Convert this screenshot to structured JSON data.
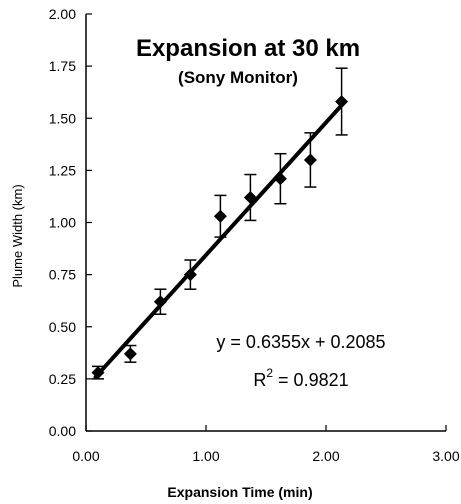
{
  "chart_data": {
    "type": "scatter",
    "title": "Expansion at 30 km",
    "subtitle": "(Sony Monitor)",
    "xlabel": "Expansion Time (min)",
    "ylabel": "Plume Width (km)",
    "xlim": [
      0,
      3
    ],
    "ylim": [
      0,
      2
    ],
    "x_ticks": [
      "0.00",
      "1.00",
      "2.00",
      "3.00"
    ],
    "y_ticks": [
      "0.00",
      "0.25",
      "0.50",
      "0.75",
      "1.00",
      "1.25",
      "1.50",
      "1.75",
      "2.00"
    ],
    "x_tick_values": [
      0,
      1,
      2,
      3
    ],
    "y_tick_values": [
      0,
      0.25,
      0.5,
      0.75,
      1.0,
      1.25,
      1.5,
      1.75,
      2.0
    ],
    "points": [
      {
        "x": 0.1,
        "y": 0.28,
        "err": 0.03
      },
      {
        "x": 0.37,
        "y": 0.37,
        "err": 0.04
      },
      {
        "x": 0.62,
        "y": 0.62,
        "err": 0.06
      },
      {
        "x": 0.87,
        "y": 0.75,
        "err": 0.07
      },
      {
        "x": 1.12,
        "y": 1.03,
        "err": 0.1
      },
      {
        "x": 1.37,
        "y": 1.12,
        "err": 0.11
      },
      {
        "x": 1.62,
        "y": 1.21,
        "err": 0.12
      },
      {
        "x": 1.87,
        "y": 1.3,
        "err": 0.13
      },
      {
        "x": 2.13,
        "y": 1.58,
        "err": 0.16
      }
    ],
    "fit": {
      "slope": 0.6355,
      "intercept": 0.2085,
      "x_range": [
        0.08,
        2.15
      ]
    },
    "equation_text": "y = 0.6355x + 0.2085",
    "r2_prefix": "R",
    "r2_sup": "2",
    "r2_suffix": " = 0.9821",
    "grid": false,
    "legend": "none"
  }
}
